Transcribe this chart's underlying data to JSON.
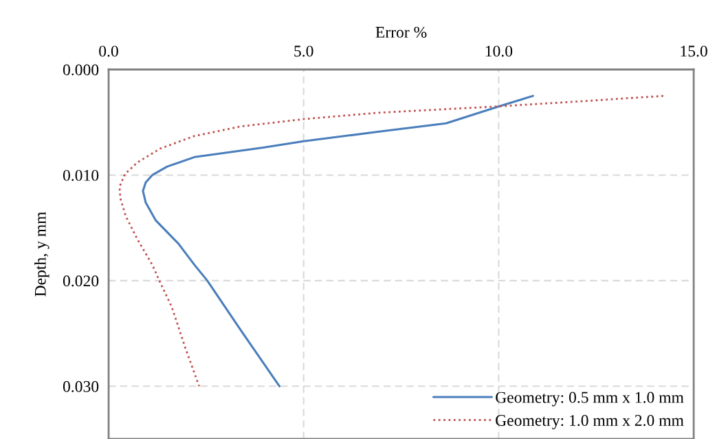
{
  "chart_data": {
    "type": "line",
    "xlabel": "Error %",
    "ylabel": "Depth, y mm",
    "xlim": [
      0,
      15
    ],
    "xticks": [
      {
        "value": 0,
        "label": "0.0"
      },
      {
        "value": 5,
        "label": "5.0"
      },
      {
        "value": 10,
        "label": "10.0"
      },
      {
        "value": 15,
        "label": "15.0"
      }
    ],
    "ylim": [
      0.035,
      0
    ],
    "yticks": [
      {
        "value": 0,
        "label": "0.000"
      },
      {
        "value": 0.01,
        "label": "0.010"
      },
      {
        "value": 0.02,
        "label": "0.020"
      },
      {
        "value": 0.03,
        "label": "0.030"
      }
    ],
    "grid": true,
    "legend": "bottom right",
    "series": [
      {
        "name": "Geometry: 0.5 mm x 1.0 mm",
        "color": "#4a7ebb",
        "line_style": "solid",
        "x": [
          10.88,
          10.0,
          8.65,
          6.9,
          5.0,
          3.96,
          2.2,
          1.5,
          1.12,
          0.95,
          0.88,
          0.95,
          1.21,
          1.79,
          2.2,
          2.53,
          3.37,
          4.38
        ],
        "values": [
          0.0025,
          0.0035,
          0.0051,
          0.0059,
          0.0068,
          0.0074,
          0.0083,
          0.0092,
          0.01,
          0.0107,
          0.0115,
          0.0126,
          0.0143,
          0.0165,
          0.0185,
          0.02,
          0.0246,
          0.03
        ]
      },
      {
        "name": "Geometry: 1.0 mm x 2.0 mm",
        "color": "#c0504d",
        "line_style": "dotted",
        "x": [
          14.22,
          12.16,
          9.96,
          6.89,
          5.0,
          3.37,
          2.2,
          1.32,
          0.74,
          0.42,
          0.28,
          0.3,
          0.44,
          0.74,
          1.12,
          1.3,
          1.62,
          1.97,
          2.32
        ],
        "values": [
          0.0025,
          0.003,
          0.0035,
          0.0041,
          0.0047,
          0.0054,
          0.0063,
          0.0075,
          0.0088,
          0.0099,
          0.0111,
          0.0122,
          0.0139,
          0.0161,
          0.0185,
          0.02,
          0.0225,
          0.0264,
          0.03
        ]
      }
    ]
  }
}
